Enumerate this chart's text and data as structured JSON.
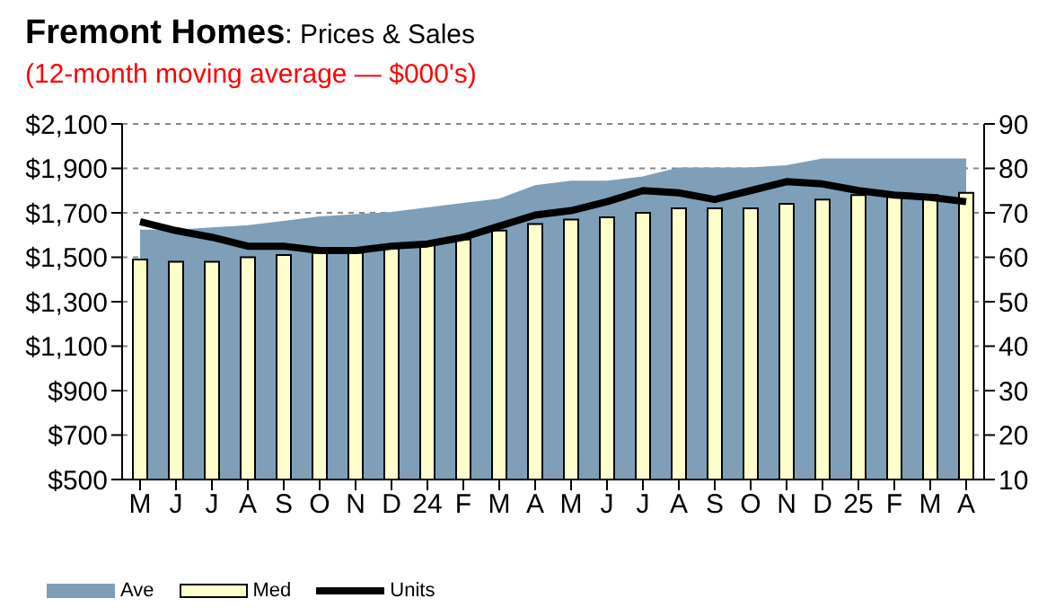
{
  "chart_data": {
    "type": "bar",
    "title": "Fremont Homes: Prices & Sales",
    "subtitle": "(12-month moving average — $000's)",
    "categories": [
      "M",
      "J",
      "J",
      "A",
      "S",
      "O",
      "N",
      "D",
      "24",
      "F",
      "M",
      "A",
      "M",
      "J",
      "J",
      "A",
      "S",
      "O",
      "N",
      "D",
      "25",
      "F",
      "M",
      "A"
    ],
    "series": [
      {
        "name": "Ave",
        "type": "area",
        "color": "#7f9fb8",
        "values": [
          1620,
          1620,
          1630,
          1640,
          1660,
          1680,
          1690,
          1700,
          1720,
          1740,
          1760,
          1820,
          1840,
          1840,
          1860,
          1900,
          1900,
          1900,
          1910,
          1940,
          1940,
          1940,
          1940,
          1940
        ]
      },
      {
        "name": "Med",
        "color": "#ffffcc",
        "values": [
          1490,
          1480,
          1480,
          1500,
          1510,
          1520,
          1520,
          1540,
          1560,
          1580,
          1620,
          1650,
          1670,
          1680,
          1700,
          1720,
          1720,
          1720,
          1740,
          1760,
          1780,
          1780,
          1780,
          1790
        ]
      },
      {
        "name": "Units",
        "type": "line",
        "axis": "y2",
        "color": "#000000",
        "values": [
          68,
          66,
          64.5,
          62.5,
          62.5,
          61.5,
          61.5,
          62.5,
          63,
          64.5,
          67,
          69.5,
          70.5,
          72.5,
          75,
          74.5,
          73,
          75,
          77,
          76.5,
          75,
          74,
          73.5,
          72.5
        ]
      }
    ],
    "ylim": [
      500,
      2100
    ],
    "yticks": [
      {
        "value": 500,
        "label": "$500"
      },
      {
        "value": 700,
        "label": "$700"
      },
      {
        "value": 900,
        "label": "$900"
      },
      {
        "value": 1100,
        "label": "$1,100"
      },
      {
        "value": 1300,
        "label": "$1,300"
      },
      {
        "value": 1500,
        "label": "$1,500"
      },
      {
        "value": 1700,
        "label": "$1,700"
      },
      {
        "value": 1900,
        "label": "$1,900"
      },
      {
        "value": 2100,
        "label": "$2,100"
      }
    ],
    "y2lim": [
      10,
      90
    ],
    "y2ticks": [
      10,
      20,
      30,
      40,
      50,
      60,
      70,
      80,
      90
    ],
    "grid": "y",
    "legend": "bottom left",
    "marker": "none",
    "line_style": "solid"
  }
}
